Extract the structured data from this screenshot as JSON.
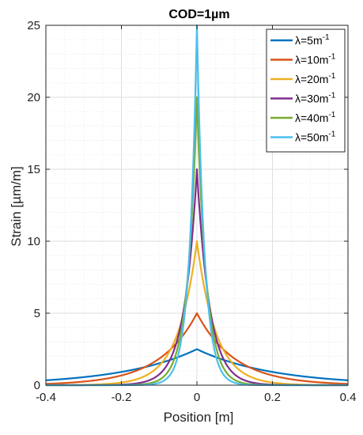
{
  "chart_data": {
    "type": "line",
    "title": "COD=1µm",
    "xlabel": "Position [m]",
    "ylabel": "Strain [µm/m]",
    "xlim": [
      -0.4,
      0.4
    ],
    "ylim": [
      0,
      25
    ],
    "xticks": [
      -0.4,
      -0.2,
      0,
      0.2,
      0.4
    ],
    "xtick_labels": [
      "-0.4",
      "-0.2",
      "0",
      "0.2",
      "0.4"
    ],
    "yticks": [
      0,
      5,
      10,
      15,
      20,
      25
    ],
    "ytick_labels": [
      "0",
      "5",
      "10",
      "15",
      "20",
      "25"
    ],
    "grid": true,
    "minor_grid": true,
    "legend_position": "top-right",
    "model": "strain = (lambda * COD / 2) * exp(-lambda * |position|)",
    "series": [
      {
        "name": "λ=5m-1",
        "lambda": 5,
        "color": "#0072BD",
        "x": [
          -0.4,
          -0.3,
          -0.2,
          -0.1,
          0,
          0.1,
          0.2,
          0.3,
          0.4
        ],
        "values": [
          0.34,
          0.56,
          0.92,
          1.52,
          2.5,
          1.52,
          0.92,
          0.56,
          0.34
        ]
      },
      {
        "name": "λ=10m-1",
        "lambda": 10,
        "color": "#D95319",
        "x": [
          -0.4,
          -0.3,
          -0.2,
          -0.1,
          0,
          0.1,
          0.2,
          0.3,
          0.4
        ],
        "values": [
          0.09,
          0.25,
          0.68,
          1.84,
          5.0,
          1.84,
          0.68,
          0.25,
          0.09
        ]
      },
      {
        "name": "λ=20m-1",
        "lambda": 20,
        "color": "#EDB120",
        "x": [
          -0.4,
          -0.3,
          -0.2,
          -0.1,
          0,
          0.1,
          0.2,
          0.3,
          0.4
        ],
        "values": [
          0.0,
          0.02,
          0.18,
          1.35,
          10.0,
          1.35,
          0.18,
          0.02,
          0.0
        ]
      },
      {
        "name": "λ=30m-1",
        "lambda": 30,
        "color": "#7E2F8E",
        "x": [
          -0.4,
          -0.3,
          -0.2,
          -0.1,
          0,
          0.1,
          0.2,
          0.3,
          0.4
        ],
        "values": [
          0.0,
          0.0,
          0.04,
          0.75,
          15.0,
          0.75,
          0.04,
          0.0,
          0.0
        ]
      },
      {
        "name": "λ=40m-1",
        "lambda": 40,
        "color": "#77AC30",
        "x": [
          -0.4,
          -0.3,
          -0.2,
          -0.1,
          0,
          0.1,
          0.2,
          0.3,
          0.4
        ],
        "values": [
          0.0,
          0.0,
          0.01,
          0.37,
          20.0,
          0.37,
          0.01,
          0.0,
          0.0
        ]
      },
      {
        "name": "λ=50m-1",
        "lambda": 50,
        "color": "#4DBEEE",
        "x": [
          -0.4,
          -0.3,
          -0.2,
          -0.1,
          0,
          0.1,
          0.2,
          0.3,
          0.4
        ],
        "values": [
          0.0,
          0.0,
          0.0,
          0.17,
          25.0,
          0.17,
          0.0,
          0.0,
          0.0
        ]
      }
    ]
  }
}
